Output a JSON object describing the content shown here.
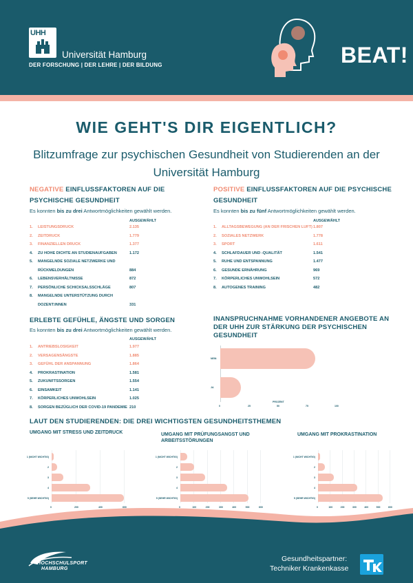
{
  "header": {
    "logo_text": "UHH",
    "university": "Universität Hamburg",
    "motto": "DER FORSCHUNG | DER LEHRE | DER BILDUNG",
    "brand": "BEAT!"
  },
  "title": "WIE GEHT'S DIR EIGENTLICH?",
  "subtitle": "Blitzumfrage zur psychischen Gesundheit von Studierenden an der Universität Hamburg",
  "negative": {
    "accent": "NEGATIVE",
    "rest": " EINFLUSSFAKTOREN AUF DIE PSYCHISCHE GESUNDHEIT",
    "sub_pre": "Es konnten ",
    "sub_bold": "bis zu drei",
    "sub_post": " Antwortmöglichkeiten gewählt werden.",
    "col": "AUSGEWÄHLT",
    "items": [
      {
        "n": "1.",
        "label": "LEISTUNGSDRUCK",
        "value": "2.135"
      },
      {
        "n": "2.",
        "label": "ZEITDRUCK",
        "value": "1.779"
      },
      {
        "n": "3.",
        "label": "FINANZIELLEN DRUCK",
        "value": "1.377"
      },
      {
        "n": "4.",
        "label": "ZU HOHE DICHTE AN STUDIENAUFGABEN",
        "value": "1.172"
      },
      {
        "n": "5.",
        "label": "MANGELNDE SOZIALE NETZWERKE UND",
        "label2": "RÜCKMELDUNGEN",
        "value": "884"
      },
      {
        "n": "6.",
        "label": "LEBENSVERHÄLTNISSE",
        "value": "872"
      },
      {
        "n": "7.",
        "label": "PERSÖNLICHE SCHICKSALSSCHLÄGE",
        "value": "807"
      },
      {
        "n": "8.",
        "label": "MANGELNDE UNTERSTÜTZUNG DURCH",
        "label2": "DOZENT:INNEN",
        "value": "331"
      }
    ]
  },
  "positive": {
    "accent": "POSITIVE",
    "rest": " EINFLUSSFAKTOREN AUF DIE PSYCHISCHE GESUNDHEIT",
    "sub_pre": "Es konnten ",
    "sub_bold": "bis zu fünf",
    "sub_post": " Antwortmöglichkeiten gewählt werden.",
    "col": "AUSGEWÄHLT",
    "items": [
      {
        "n": "1.",
        "label": "ALLTAGSBEWEGUNG (AN DER FRISCHEN LUFT)",
        "value": "1.807"
      },
      {
        "n": "2.",
        "label": "SOZIALES NETZWERK",
        "value": "1.778"
      },
      {
        "n": "3.",
        "label": "SPORT",
        "value": "1.611"
      },
      {
        "n": "4.",
        "label": "SCHLAFDAUER UND -QUALITÄT",
        "value": "1.541"
      },
      {
        "n": "5.",
        "label": "RUHE UND ENTSPANNUNG",
        "value": "1.477"
      },
      {
        "n": "6.",
        "label": "GESUNDE ERNÄHRUNG",
        "value": "969"
      },
      {
        "n": "7.",
        "label": "KÖRPERLICHES UNWOHLSEIN",
        "value": "572"
      },
      {
        "n": "8.",
        "label": "AUTOGENES TRAINING",
        "value": "482"
      }
    ]
  },
  "feelings": {
    "title": "ERLEBTE GEFÜHLE, ÄNGSTE UND SORGEN",
    "sub_pre": "Es konnten ",
    "sub_bold": "bis zu drei",
    "sub_post": " Antwortmöglichkeiten gewählt werden.",
    "col": "AUSGEWÄHLT",
    "items": [
      {
        "n": "1.",
        "label": "ANTRIEBSLOSIGKEIT",
        "value": "1.977"
      },
      {
        "n": "2.",
        "label": "VERSAGENSÄNGSTE",
        "value": "1.885"
      },
      {
        "n": "3.",
        "label": "GEFÜHL DER ANSPANNUNG",
        "value": "1.864"
      },
      {
        "n": "4.",
        "label": "PROKRASTINATION",
        "value": "1.581"
      },
      {
        "n": "5.",
        "label": "ZUKUNFTSSORGEN",
        "value": "1.554"
      },
      {
        "n": "6.",
        "label": "EINSAMKEIT",
        "value": "1.141"
      },
      {
        "n": "7.",
        "label": "KÖRPERLICHES UNWOHLSEIN",
        "value": "1.025"
      },
      {
        "n": "8.",
        "label": "SORGEN BEZÜGLICH DER COVID-19 PANDEMIE",
        "value": "210"
      }
    ]
  },
  "offers": {
    "title": "INANSPRUCHNAHME VORHANDENER ANGEBOTE AN DER UHH ZUR STÄRKUNG DER PSYCHISCHEN GESUNDHEIT",
    "xlabel": "PROZENT"
  },
  "topics_title": "LAUT DEN STUDIERENDEN: DIE DREI WICHTIGSTEN GESUNDHEITSTHEMEN",
  "chart_data": [
    {
      "type": "bar",
      "orientation": "horizontal",
      "categories": [
        "NEIN",
        "JA"
      ],
      "values": [
        82,
        18
      ],
      "xlabel": "PROZENT",
      "xticks": [
        "0",
        "25",
        "50",
        "75",
        "100"
      ],
      "xlim": [
        0,
        100
      ]
    },
    {
      "type": "bar",
      "orientation": "horizontal",
      "title": "UMGANG MIT STRESS UND ZEITDRUCK",
      "categories": [
        "1 (NICHT WICHTIG)",
        "2",
        "3",
        "4",
        "5 (SEHR WICHTIG)"
      ],
      "values": [
        20,
        55,
        115,
        370,
        700
      ],
      "xticks": [
        "0",
        "200",
        "400",
        "600"
      ],
      "xlim": [
        0,
        700
      ]
    },
    {
      "type": "bar",
      "orientation": "horizontal",
      "title": "UMGANG MIT PRÜFUNGSANGST UND ARBEITSSTÖRUNGEN",
      "categories": [
        "1 (NICHT WICHTIG)",
        "2",
        "3",
        "4",
        "5 (SEHR WICHTIG)"
      ],
      "values": [
        60,
        120,
        215,
        410,
        600
      ],
      "xticks": [
        "0",
        "100",
        "200",
        "300",
        "400",
        "500",
        "600"
      ],
      "xlim": [
        0,
        700
      ]
    },
    {
      "type": "bar",
      "orientation": "horizontal",
      "title": "UMGANG MIT PROKRASTINATION",
      "categories": [
        "1 (NICHT WICHTIG)",
        "2",
        "3",
        "4",
        "5 (SEHR WICHTIG)"
      ],
      "values": [
        15,
        60,
        130,
        330,
        545
      ],
      "xticks": [
        "0",
        "100",
        "200",
        "300",
        "400",
        "500",
        "600"
      ],
      "xlim": [
        0,
        600
      ]
    }
  ],
  "footer": {
    "hsp_line1": "HOCHSCHULSPORT",
    "hsp_line2": "HAMBURG",
    "partner_line1": "Gesundheitspartner:",
    "partner_line2": "Techniker Krankenkasse"
  },
  "colors": {
    "primary": "#1a5b6b",
    "accent": "#f08b72",
    "bar": "#f6c2b6"
  }
}
